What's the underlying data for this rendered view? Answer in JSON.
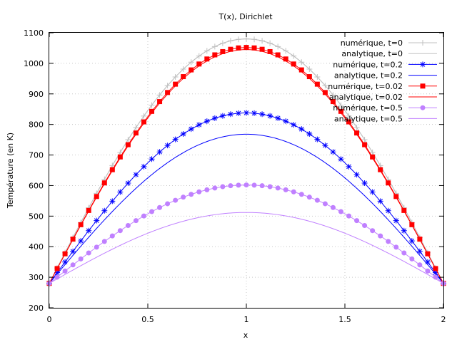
{
  "chart_data": {
    "type": "line",
    "title": "T(x), Dirichlet",
    "xlabel": "x",
    "ylabel": "Température (en K)",
    "xlim": [
      0,
      2
    ],
    "ylim": [
      200,
      1100
    ],
    "xticks": [
      "0",
      "0.5",
      "1",
      "1.5",
      "2"
    ],
    "yticks": [
      "200",
      "300",
      "400",
      "500",
      "600",
      "700",
      "800",
      "900",
      "1000",
      "1100"
    ],
    "grid": true,
    "legend_position": "top-right",
    "model": {
      "boundary_value": 280,
      "note": "Each series follows T(x) = 280 + amplitude * sin(pi*x/2); numeric series sampled at 51 points x = 0..2 step 0.04"
    },
    "series": [
      {
        "name": "numérique, t=0",
        "kind": "numeric",
        "amplitude": 800,
        "color": "#c0c0c0",
        "marker": "plus"
      },
      {
        "name": "analytique, t=0",
        "kind": "analytic",
        "amplitude": 800,
        "color": "#c0c0c0"
      },
      {
        "name": "numérique, t=0.2",
        "kind": "numeric",
        "amplitude": 558,
        "color": "#0000ff",
        "marker": "star"
      },
      {
        "name": "analytique, t=0.2",
        "kind": "analytic",
        "amplitude": 488,
        "color": "#0000ff"
      },
      {
        "name": "numérique, t=0.02",
        "kind": "numeric",
        "amplitude": 772,
        "color": "#ff0000",
        "marker": "square"
      },
      {
        "name": "analytique, t=0.02",
        "kind": "analytic",
        "amplitude": 765,
        "color": "#ff0000"
      },
      {
        "name": "numérique, t=0.5",
        "kind": "numeric",
        "amplitude": 322,
        "color": "#c080ff",
        "marker": "circle"
      },
      {
        "name": "analytique, t=0.5",
        "kind": "analytic",
        "amplitude": 232,
        "color": "#c080ff"
      }
    ]
  }
}
